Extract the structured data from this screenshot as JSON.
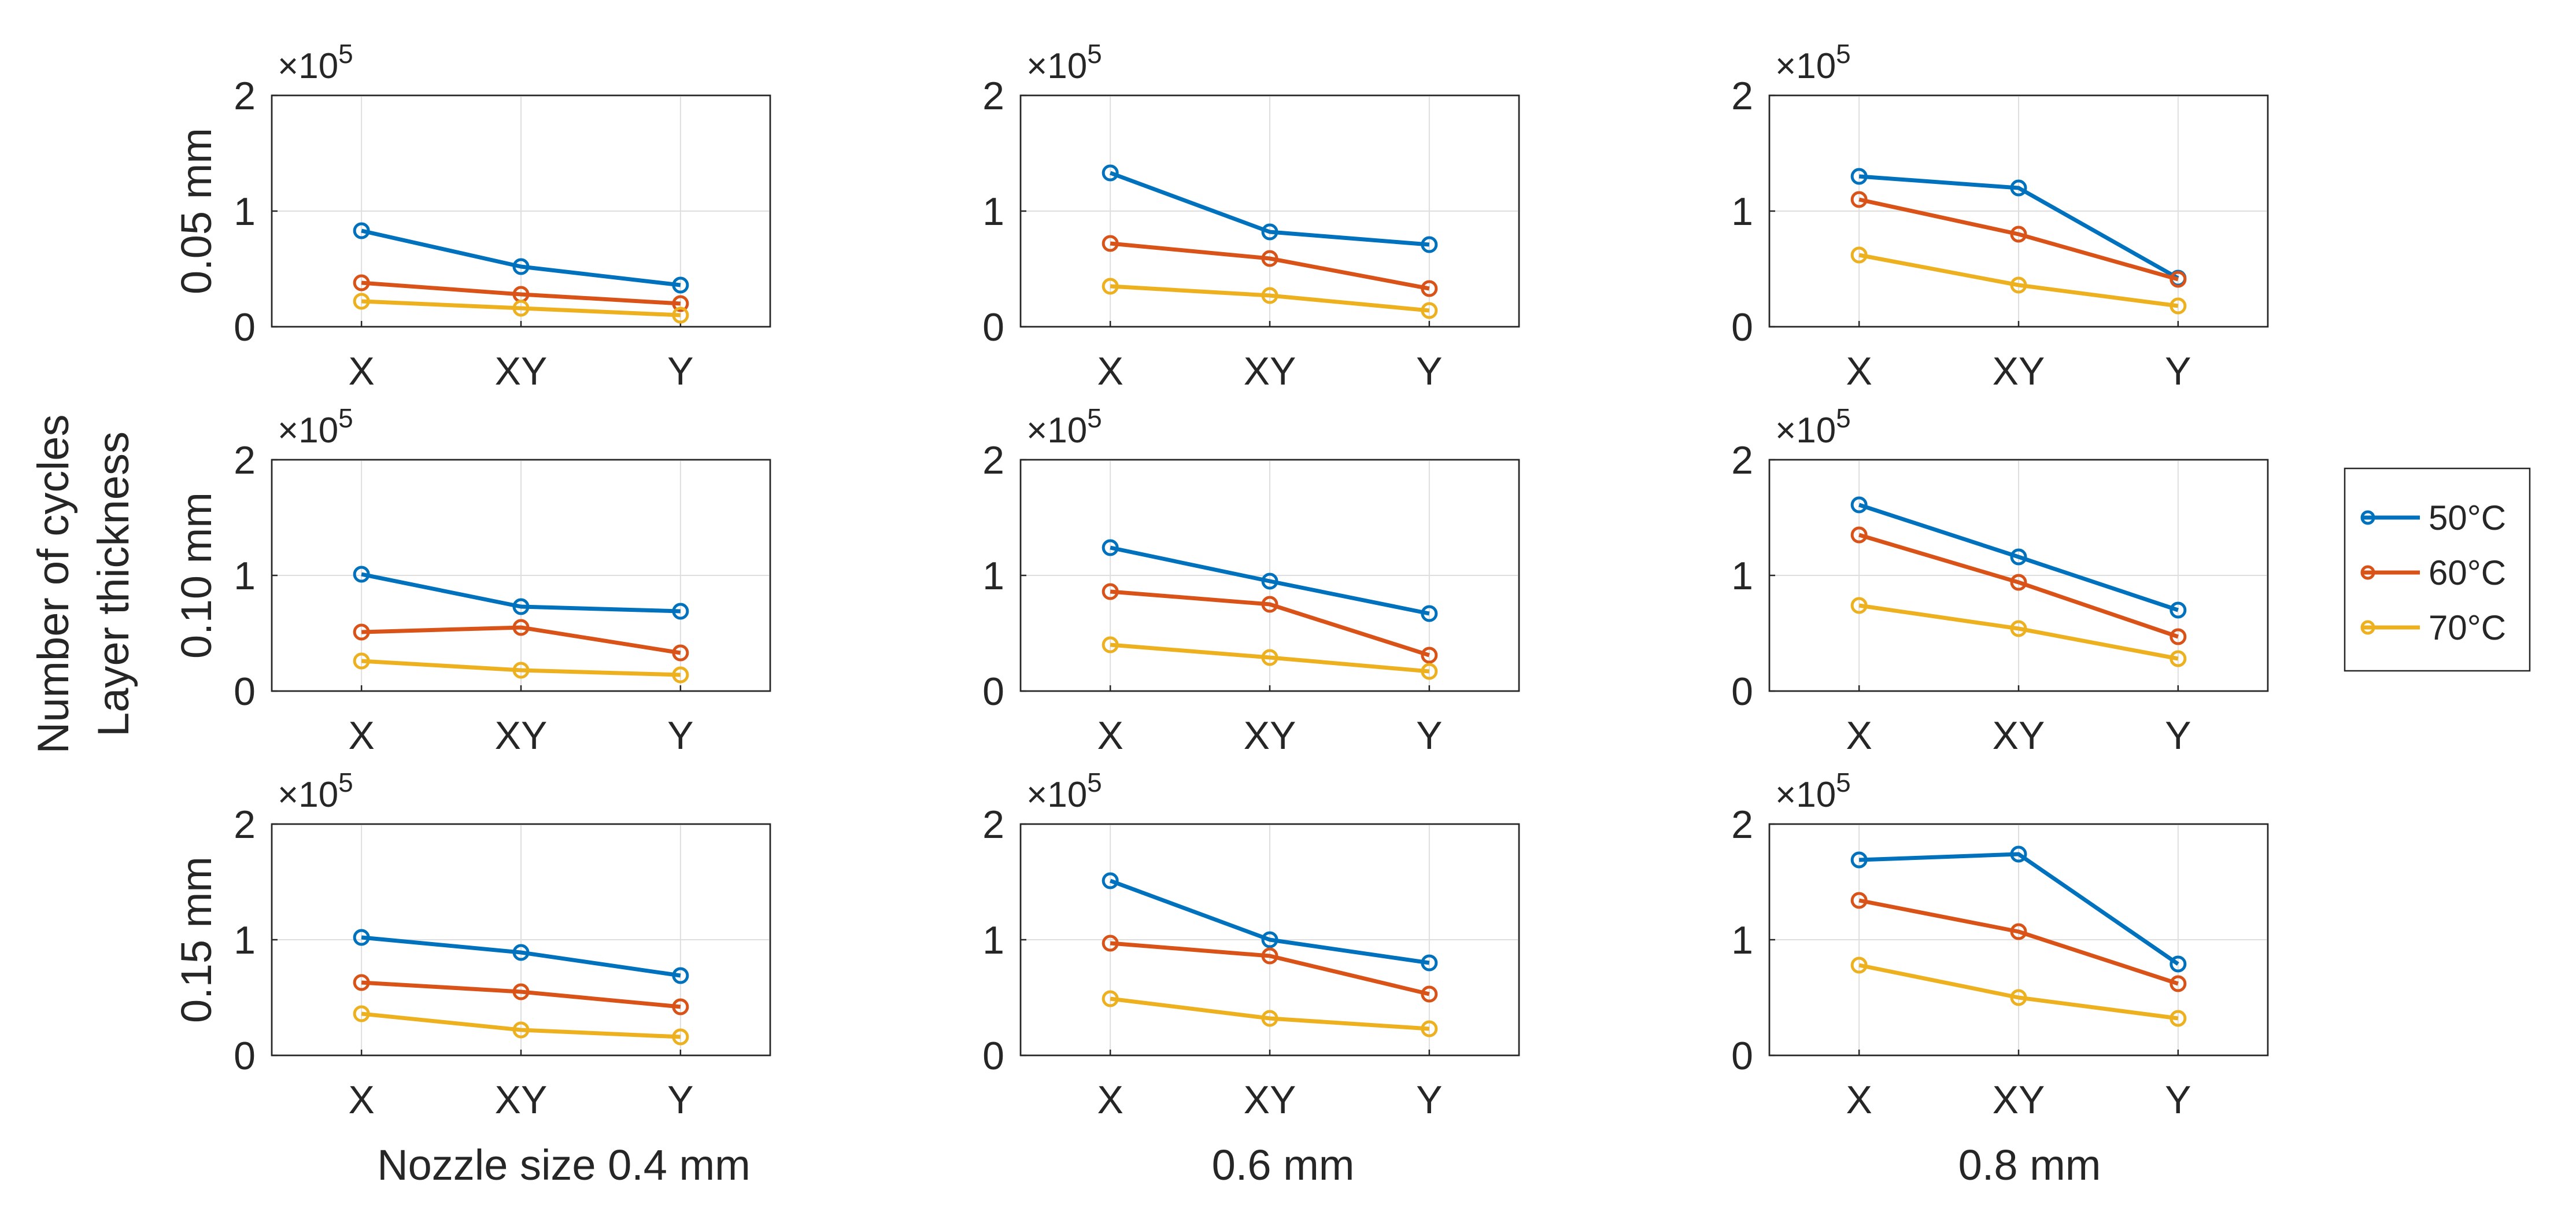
{
  "chart_data": {
    "type": "line",
    "layout": "3x3 small multiples",
    "ylabel": [
      "Number of cycles",
      "Layer thickness"
    ],
    "exponent_label": "×10",
    "exponent_power": "5",
    "categories": [
      "X",
      "XY",
      "Y"
    ],
    "yticks": [
      "0",
      "1",
      "2"
    ],
    "ylim": [
      0,
      2
    ],
    "column_labels": [
      "Nozzle size 0.4 mm",
      "0.6 mm",
      "0.8 mm"
    ],
    "row_labels": [
      "0.05 mm",
      "0.10 mm",
      "0.15 mm"
    ],
    "grid": true,
    "legend": {
      "location": "right",
      "entries": [
        "50°C",
        "60°C",
        "70°C"
      ],
      "colors": [
        "#0072BD",
        "#D95319",
        "#EDB120"
      ]
    },
    "panels": [
      {
        "row": "0.05 mm",
        "nozzle": "0.4 mm",
        "series": [
          {
            "name": "50°C",
            "values": [
              0.83,
              0.52,
              0.36
            ]
          },
          {
            "name": "60°C",
            "values": [
              0.38,
              0.28,
              0.2
            ]
          },
          {
            "name": "70°C",
            "values": [
              0.22,
              0.16,
              0.1
            ]
          }
        ]
      },
      {
        "row": "0.05 mm",
        "nozzle": "0.6 mm",
        "series": [
          {
            "name": "50°C",
            "values": [
              1.33,
              0.82,
              0.71
            ]
          },
          {
            "name": "60°C",
            "values": [
              0.72,
              0.59,
              0.33
            ]
          },
          {
            "name": "70°C",
            "values": [
              0.35,
              0.27,
              0.14
            ]
          }
        ]
      },
      {
        "row": "0.05 mm",
        "nozzle": "0.8 mm",
        "series": [
          {
            "name": "50°C",
            "values": [
              1.3,
              1.2,
              0.42
            ]
          },
          {
            "name": "60°C",
            "values": [
              1.1,
              0.8,
              0.41
            ]
          },
          {
            "name": "70°C",
            "values": [
              0.62,
              0.36,
              0.18
            ]
          }
        ]
      },
      {
        "row": "0.10 mm",
        "nozzle": "0.4 mm",
        "series": [
          {
            "name": "50°C",
            "values": [
              1.01,
              0.73,
              0.69
            ]
          },
          {
            "name": "60°C",
            "values": [
              0.51,
              0.55,
              0.33
            ]
          },
          {
            "name": "70°C",
            "values": [
              0.26,
              0.18,
              0.14
            ]
          }
        ]
      },
      {
        "row": "0.10 mm",
        "nozzle": "0.6 mm",
        "series": [
          {
            "name": "50°C",
            "values": [
              1.24,
              0.95,
              0.67
            ]
          },
          {
            "name": "60°C",
            "values": [
              0.86,
              0.75,
              0.31
            ]
          },
          {
            "name": "70°C",
            "values": [
              0.4,
              0.29,
              0.17
            ]
          }
        ]
      },
      {
        "row": "0.10 mm",
        "nozzle": "0.8 mm",
        "series": [
          {
            "name": "50°C",
            "values": [
              1.61,
              1.16,
              0.7
            ]
          },
          {
            "name": "60°C",
            "values": [
              1.35,
              0.94,
              0.47
            ]
          },
          {
            "name": "70°C",
            "values": [
              0.74,
              0.54,
              0.28
            ]
          }
        ]
      },
      {
        "row": "0.15 mm",
        "nozzle": "0.4 mm",
        "series": [
          {
            "name": "50°C",
            "values": [
              1.02,
              0.89,
              0.69
            ]
          },
          {
            "name": "60°C",
            "values": [
              0.63,
              0.55,
              0.42
            ]
          },
          {
            "name": "70°C",
            "values": [
              0.36,
              0.22,
              0.16
            ]
          }
        ]
      },
      {
        "row": "0.15 mm",
        "nozzle": "0.6 mm",
        "series": [
          {
            "name": "50°C",
            "values": [
              1.51,
              1.0,
              0.8
            ]
          },
          {
            "name": "60°C",
            "values": [
              0.97,
              0.86,
              0.53
            ]
          },
          {
            "name": "70°C",
            "values": [
              0.49,
              0.32,
              0.23
            ]
          }
        ]
      },
      {
        "row": "0.15 mm",
        "nozzle": "0.8 mm",
        "series": [
          {
            "name": "50°C",
            "values": [
              1.69,
              1.74,
              0.79
            ]
          },
          {
            "name": "60°C",
            "values": [
              1.34,
              1.07,
              0.62
            ]
          },
          {
            "name": "70°C",
            "values": [
              0.78,
              0.5,
              0.32
            ]
          }
        ]
      }
    ]
  }
}
